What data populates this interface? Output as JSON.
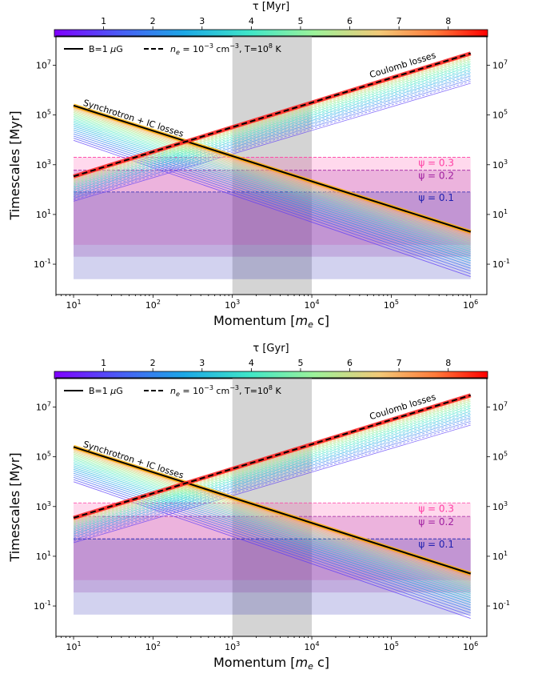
{
  "chart_data": [
    {
      "type": "line",
      "colorbar": {
        "label": "τ [Myr]",
        "ticks": [
          "1",
          "2",
          "3",
          "4",
          "5",
          "6",
          "7",
          "8"
        ],
        "range": [
          0,
          8.8
        ]
      },
      "xlabel": "Momentum [m_e c]",
      "ylabel": "Timescales [Myr]",
      "x_scale": "log",
      "y_scale": "log",
      "xlim": [
        6,
        1600000
      ],
      "ylim": [
        0.006,
        150000000
      ],
      "x_ticks": [
        10,
        100,
        1000,
        10000,
        100000,
        1000000
      ],
      "y_ticks": [
        0.1,
        10,
        1000,
        100000,
        10000000
      ],
      "legend": {
        "position": "top-left",
        "entries": [
          "B=1 μG",
          "n_e=10^-3 cm^-3, T=10^8 K"
        ],
        "styles": [
          "solid",
          "dashed"
        ]
      },
      "shaded_x_range": [
        1000,
        10000
      ],
      "annotations": [
        "Synchrotron + IC losses",
        "Coulomb losses"
      ],
      "bands": [
        {
          "label": "ψ = 0.3",
          "upper": 2000,
          "lower": 0.6,
          "color": "#ff3fa4"
        },
        {
          "label": "ψ = 0.2",
          "upper": 600,
          "lower": 0.2,
          "color": "#a020a0"
        },
        {
          "label": "ψ = 0.1",
          "upper": 80,
          "lower": 0.025,
          "color": "#2020b0"
        }
      ],
      "series": [
        {
          "name": "B=1 μG",
          "x": [
            10,
            1000000
          ],
          "y": [
            240000,
            2
          ]
        },
        {
          "name": "n_e=10^-3 cm^-3, T=10^8 K",
          "x": [
            10,
            1000000
          ],
          "y": [
            340,
            30000000
          ]
        }
      ]
    },
    {
      "type": "line",
      "colorbar": {
        "label": "τ [Gyr]",
        "ticks": [
          "1",
          "2",
          "3",
          "4",
          "5",
          "6",
          "7",
          "8"
        ],
        "range": [
          0,
          8.8
        ]
      },
      "xlabel": "Momentum [m_e c]",
      "ylabel": "Timescales [Myr]",
      "x_scale": "log",
      "y_scale": "log",
      "xlim": [
        6,
        1600000
      ],
      "ylim": [
        0.006,
        150000000
      ],
      "x_ticks": [
        10,
        100,
        1000,
        10000,
        100000,
        1000000
      ],
      "y_ticks": [
        0.1,
        10,
        1000,
        100000,
        10000000
      ],
      "legend": {
        "position": "top-left",
        "entries": [
          "B=1 μG",
          "n_e=10^-3 cm^-3, T=10^8 K"
        ],
        "styles": [
          "solid",
          "dashed"
        ]
      },
      "shaded_x_range": [
        1000,
        10000
      ],
      "annotations": [
        "Synchrotron + IC losses",
        "Coulomb losses"
      ],
      "bands": [
        {
          "label": "ψ = 0.3",
          "upper": 1400,
          "lower": 1.1,
          "color": "#ff3fa4"
        },
        {
          "label": "ψ = 0.2",
          "upper": 400,
          "lower": 0.35,
          "color": "#a020a0"
        },
        {
          "label": "ψ = 0.1",
          "upper": 50,
          "lower": 0.045,
          "color": "#2020b0"
        }
      ],
      "series": [
        {
          "name": "B=1 μG",
          "x": [
            10,
            1000000
          ],
          "y": [
            250000,
            2
          ]
        },
        {
          "name": "n_e=10^-3 cm^-3, T=10^8 K",
          "x": [
            10,
            1000000
          ],
          "y": [
            350,
            30000000
          ]
        }
      ]
    }
  ]
}
